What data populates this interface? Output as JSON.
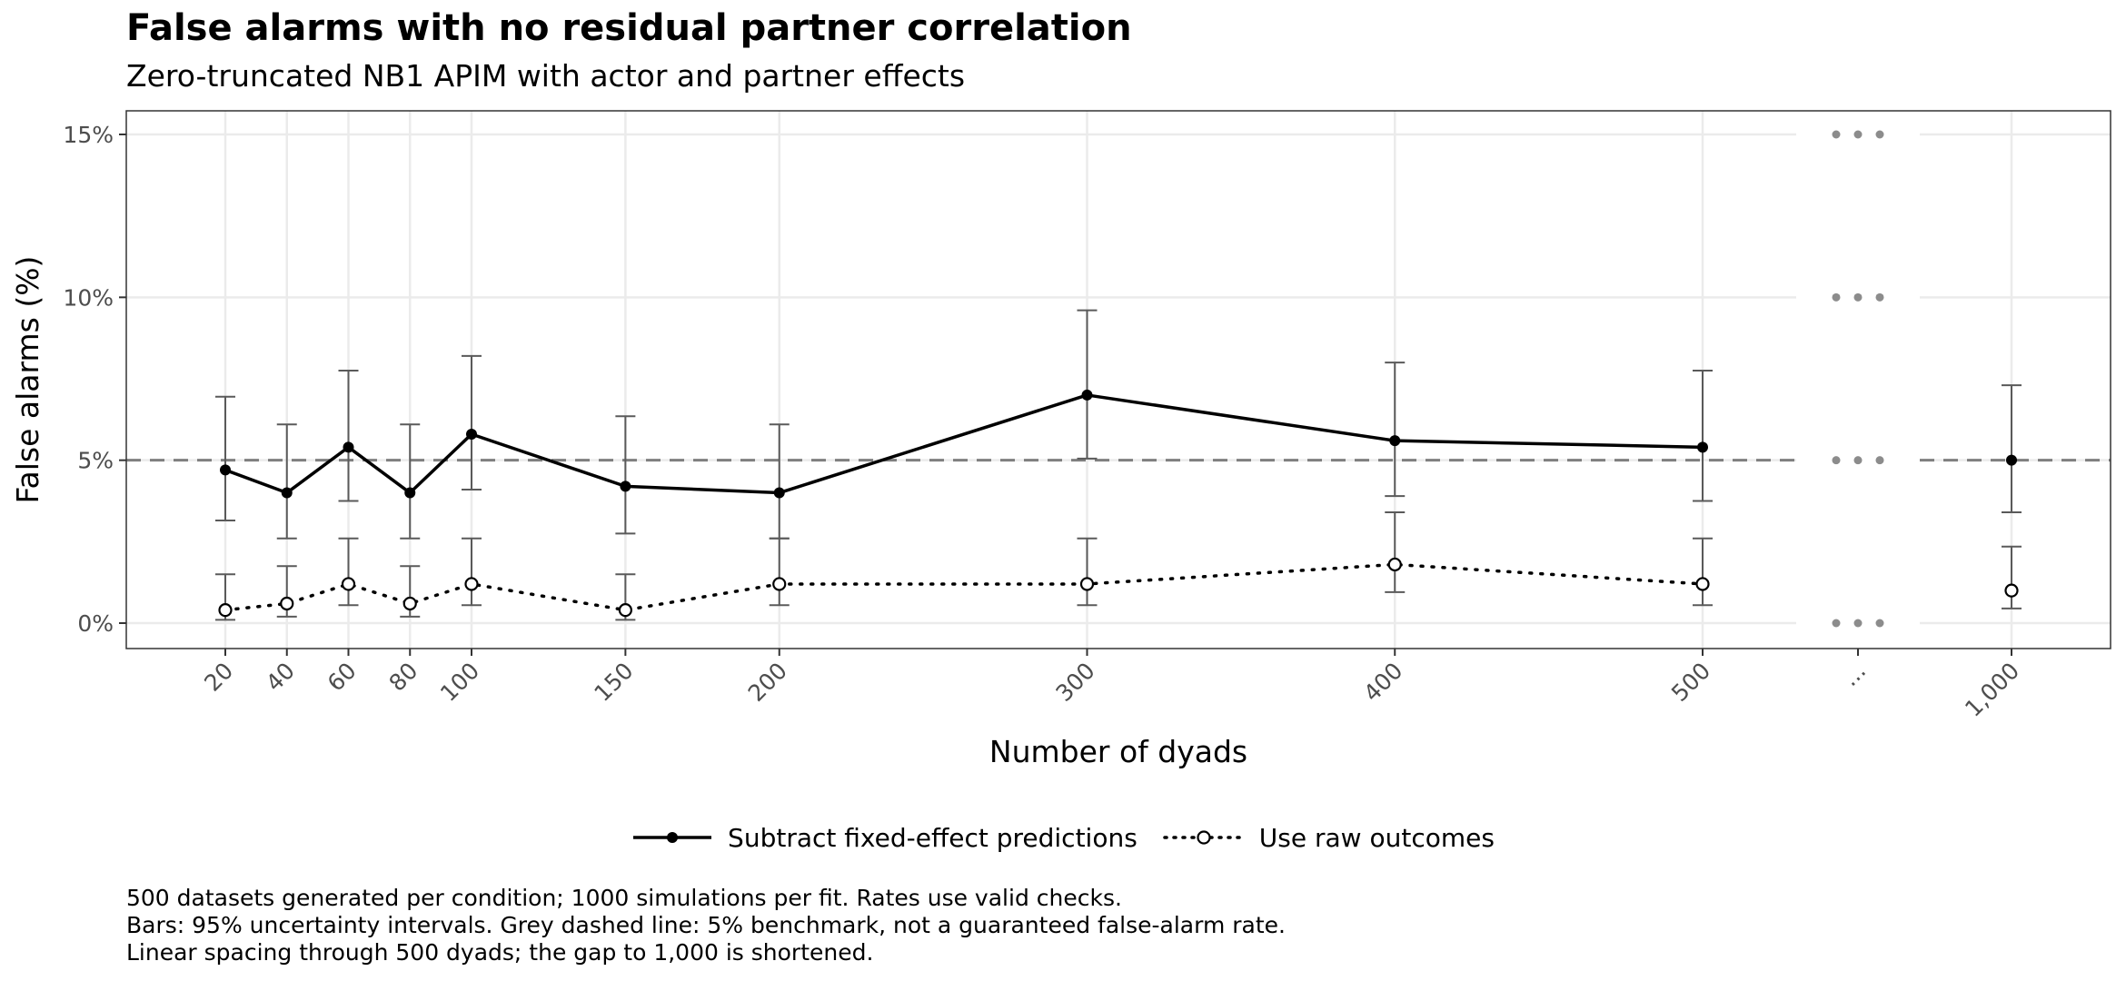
{
  "header": {
    "title": "False alarms with no residual partner correlation",
    "subtitle": "Zero-truncated NB1 APIM with actor and partner effects"
  },
  "colors": {
    "line": "#000000",
    "errorbar": "#5a5a5a",
    "benchmark": "#7f7f7f",
    "grid": "#ebebeb",
    "gap_marker": "#8c8c8c",
    "axis_text": "#4d4d4d"
  },
  "chart_data": {
    "type": "line",
    "title": "False alarms with no residual partner correlation",
    "subtitle": "Zero-truncated NB1 APIM with actor and partner effects",
    "xlabel": "Number of dyads",
    "ylabel": "False alarms (%)",
    "x_tick_labels": [
      "20",
      "40",
      "60",
      "80",
      "100",
      "150",
      "200",
      "300",
      "400",
      "500",
      "...",
      "1,000"
    ],
    "y_tick_labels": [
      "0%",
      "5%",
      "10%",
      "15%"
    ],
    "ylim": [
      0,
      15
    ],
    "y_ticks": [
      0,
      5,
      10,
      15
    ],
    "axis_break": "Linear spacing through 500 dyads; gap to 1,000 shortened",
    "benchmark": 5,
    "legend_position": "bottom",
    "grid": true,
    "series": [
      {
        "name": "Subtract fixed-effect predictions",
        "style": "solid",
        "marker": "filled-circle",
        "x": [
          20,
          40,
          60,
          80,
          100,
          150,
          200,
          300,
          400,
          500,
          1000
        ],
        "y": [
          4.7,
          4.0,
          5.4,
          4.0,
          5.8,
          4.2,
          4.0,
          7.0,
          5.6,
          5.4,
          5.0
        ],
        "ci_low": [
          3.15,
          2.6,
          3.75,
          2.6,
          4.1,
          2.75,
          2.6,
          5.05,
          3.9,
          3.75,
          3.4
        ],
        "ci_high": [
          6.95,
          6.1,
          7.75,
          6.1,
          8.2,
          6.35,
          6.1,
          9.6,
          8.0,
          7.75,
          7.3
        ]
      },
      {
        "name": "Use raw outcomes",
        "style": "dotted",
        "marker": "open-circle",
        "x": [
          20,
          40,
          60,
          80,
          100,
          150,
          200,
          300,
          400,
          500,
          1000
        ],
        "y": [
          0.4,
          0.6,
          1.2,
          0.6,
          1.2,
          0.4,
          1.2,
          1.2,
          1.8,
          1.2,
          1.0
        ],
        "ci_low": [
          0.1,
          0.2,
          0.55,
          0.2,
          0.55,
          0.1,
          0.55,
          0.55,
          0.95,
          0.55,
          0.45
        ],
        "ci_high": [
          1.5,
          1.75,
          2.6,
          1.75,
          2.6,
          1.5,
          2.6,
          2.6,
          3.4,
          2.6,
          2.35
        ]
      }
    ]
  },
  "legend": {
    "items": [
      "Subtract fixed-effect predictions",
      "Use raw outcomes"
    ]
  },
  "caption": {
    "line1": "500 datasets generated per condition; 1000 simulations per fit. Rates use valid checks.",
    "line2": "Bars: 95% uncertainty intervals. Grey dashed line: 5% benchmark, not a guaranteed false-alarm rate.",
    "line3": "Linear spacing through 500 dyads; the gap to 1,000 is shortened."
  }
}
